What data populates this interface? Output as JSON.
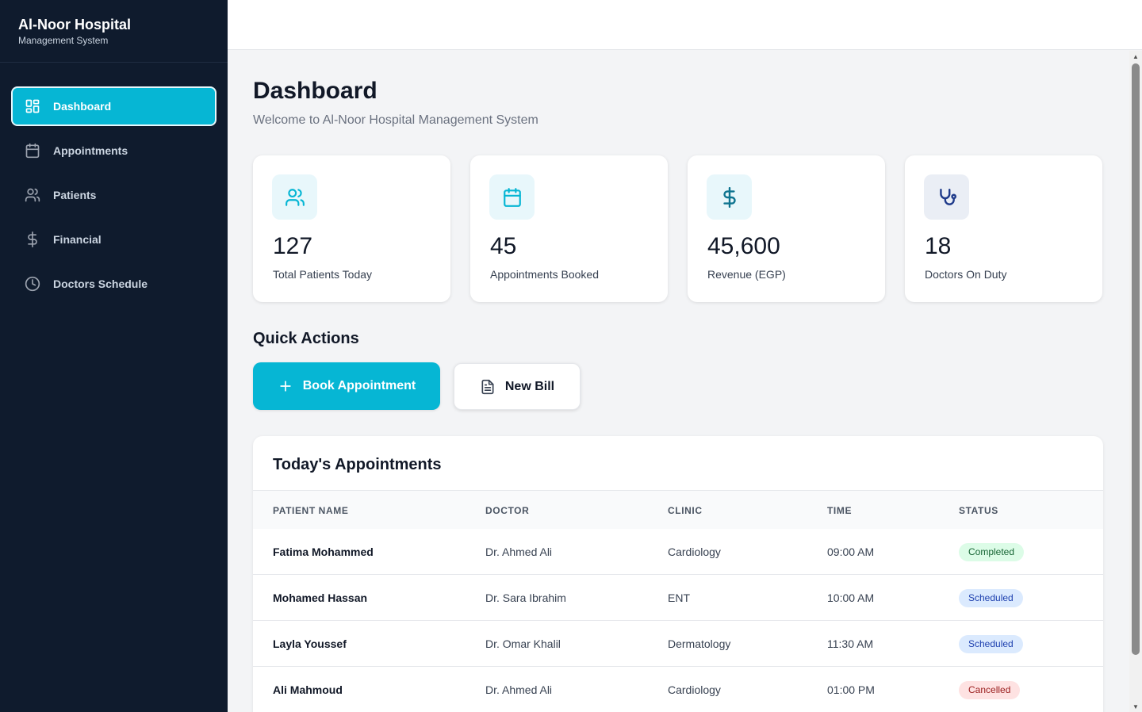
{
  "brand": {
    "title": "Al-Noor Hospital",
    "subtitle": "Management System"
  },
  "sidebar": {
    "items": [
      {
        "label": "Dashboard",
        "icon": "grid-icon",
        "active": true
      },
      {
        "label": "Appointments",
        "icon": "calendar-icon",
        "active": false
      },
      {
        "label": "Patients",
        "icon": "users-icon",
        "active": false
      },
      {
        "label": "Financial",
        "icon": "dollar-icon",
        "active": false
      },
      {
        "label": "Doctors Schedule",
        "icon": "clock-icon",
        "active": false
      }
    ]
  },
  "page": {
    "title": "Dashboard",
    "subtitle": "Welcome to Al-Noor Hospital Management System"
  },
  "stats": [
    {
      "value": "127",
      "label": "Total Patients Today",
      "icon": "users-icon",
      "color": "#06b6d4"
    },
    {
      "value": "45",
      "label": "Appointments Booked",
      "icon": "calendar-icon",
      "color": "#06b6d4"
    },
    {
      "value": "45,600",
      "label": "Revenue (EGP)",
      "icon": "dollar-icon",
      "color": "#0e7490"
    },
    {
      "value": "18",
      "label": "Doctors On Duty",
      "icon": "stethoscope-icon",
      "color": "#1e3a8a"
    }
  ],
  "quick_actions": {
    "title": "Quick Actions",
    "book_label": "Book Appointment",
    "bill_label": "New Bill"
  },
  "appointments": {
    "title": "Today's Appointments",
    "columns": [
      "PATIENT NAME",
      "DOCTOR",
      "CLINIC",
      "TIME",
      "STATUS"
    ],
    "rows": [
      {
        "patient": "Fatima Mohammed",
        "doctor": "Dr. Ahmed Ali",
        "clinic": "Cardiology",
        "time": "09:00 AM",
        "status": "Completed",
        "status_type": "completed"
      },
      {
        "patient": "Mohamed Hassan",
        "doctor": "Dr. Sara Ibrahim",
        "clinic": "ENT",
        "time": "10:00 AM",
        "status": "Scheduled",
        "status_type": "scheduled"
      },
      {
        "patient": "Layla Youssef",
        "doctor": "Dr. Omar Khalil",
        "clinic": "Dermatology",
        "time": "11:30 AM",
        "status": "Scheduled",
        "status_type": "scheduled"
      },
      {
        "patient": "Ali Mahmoud",
        "doctor": "Dr. Ahmed Ali",
        "clinic": "Cardiology",
        "time": "01:00 PM",
        "status": "Cancelled",
        "status_type": "cancelled"
      }
    ]
  },
  "colors": {
    "accent": "#06b6d4",
    "sidebar": "#0f1b2d",
    "background": "#f3f4f6"
  }
}
